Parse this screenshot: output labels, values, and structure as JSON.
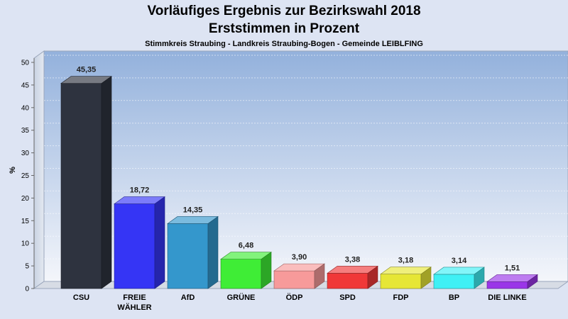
{
  "chart_data": {
    "type": "bar",
    "title": "Vorläufiges Ergebnis zur Bezirkswahl 2018",
    "subtitle": "Erststimmen in Prozent",
    "caption": "Stimmkreis Straubing - Landkreis Straubing-Bogen - Gemeinde LEIBLFING",
    "ylabel": "%",
    "ylim": [
      0,
      50
    ],
    "yticks": [
      0,
      5,
      10,
      15,
      20,
      25,
      30,
      35,
      40,
      45,
      50
    ],
    "categories": [
      [
        "CSU"
      ],
      [
        "FREIE",
        "WÄHLER"
      ],
      [
        "AfD"
      ],
      [
        "GRÜNE"
      ],
      [
        "ÖDP"
      ],
      [
        "SPD"
      ],
      [
        "FDP"
      ],
      [
        "BP"
      ],
      [
        "DIE LINKE"
      ]
    ],
    "values": [
      45.35,
      18.72,
      14.35,
      6.48,
      3.9,
      3.38,
      3.18,
      3.14,
      1.51
    ],
    "value_labels": [
      "45,35",
      "18,72",
      "14,35",
      "6,48",
      "3,90",
      "3,38",
      "3,18",
      "3,14",
      "1,51"
    ],
    "colors": [
      "#2e333f",
      "#3535f5",
      "#3497cc",
      "#3fed36",
      "#f79a9a",
      "#f03838",
      "#e6e636",
      "#3ff0f5",
      "#9a35e8"
    ],
    "grid": true,
    "legend": "none"
  }
}
